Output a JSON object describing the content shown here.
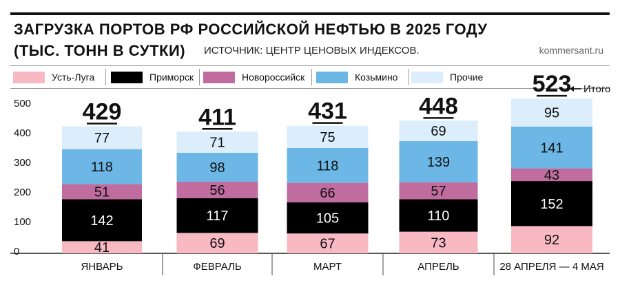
{
  "header": {
    "title_line1": "ЗАГРУЗКА ПОРТОВ РФ РОССИЙСКОЙ НЕФТЬЮ В 2025 ГОДУ",
    "title_line2": "(ТЫС. ТОНН В СУТКИ)",
    "source": "ИСТОЧНИК: ЦЕНТР ЦЕНОВЫХ ИНДЕКСОВ.",
    "site": "kommersant.ru"
  },
  "legend": [
    {
      "label": "Усть-Луга",
      "color": "#f9b9c3"
    },
    {
      "label": "Приморск",
      "color": "#000000"
    },
    {
      "label": "Новороссийск",
      "color": "#c06c9f"
    },
    {
      "label": "Козьмино",
      "color": "#6cb7e6"
    },
    {
      "label": "Прочие",
      "color": "#dcedfb"
    }
  ],
  "chart_data": {
    "type": "bar",
    "stacked": true,
    "categories": [
      "ЯНВАРЬ",
      "ФЕВРАЛЬ",
      "МАРТ",
      "АПРЕЛЬ",
      "28 АПРЕЛЯ — 4 МАЯ"
    ],
    "series": [
      {
        "name": "Усть-Луга",
        "color": "#f9b9c3",
        "values": [
          41,
          69,
          67,
          73,
          92
        ]
      },
      {
        "name": "Приморск",
        "color": "#000000",
        "values": [
          142,
          117,
          105,
          110,
          152
        ]
      },
      {
        "name": "Новороссийск",
        "color": "#c06c9f",
        "values": [
          51,
          56,
          66,
          57,
          43
        ]
      },
      {
        "name": "Козьмино",
        "color": "#6cb7e6",
        "values": [
          118,
          98,
          118,
          139,
          141
        ]
      },
      {
        "name": "Прочие",
        "color": "#dcedfb",
        "values": [
          77,
          71,
          75,
          69,
          95
        ]
      }
    ],
    "totals": [
      429,
      411,
      431,
      448,
      523
    ],
    "total_annotation": "Итого",
    "yticks": [
      0,
      100,
      200,
      300,
      400,
      500
    ],
    "ylim": [
      0,
      500
    ]
  }
}
